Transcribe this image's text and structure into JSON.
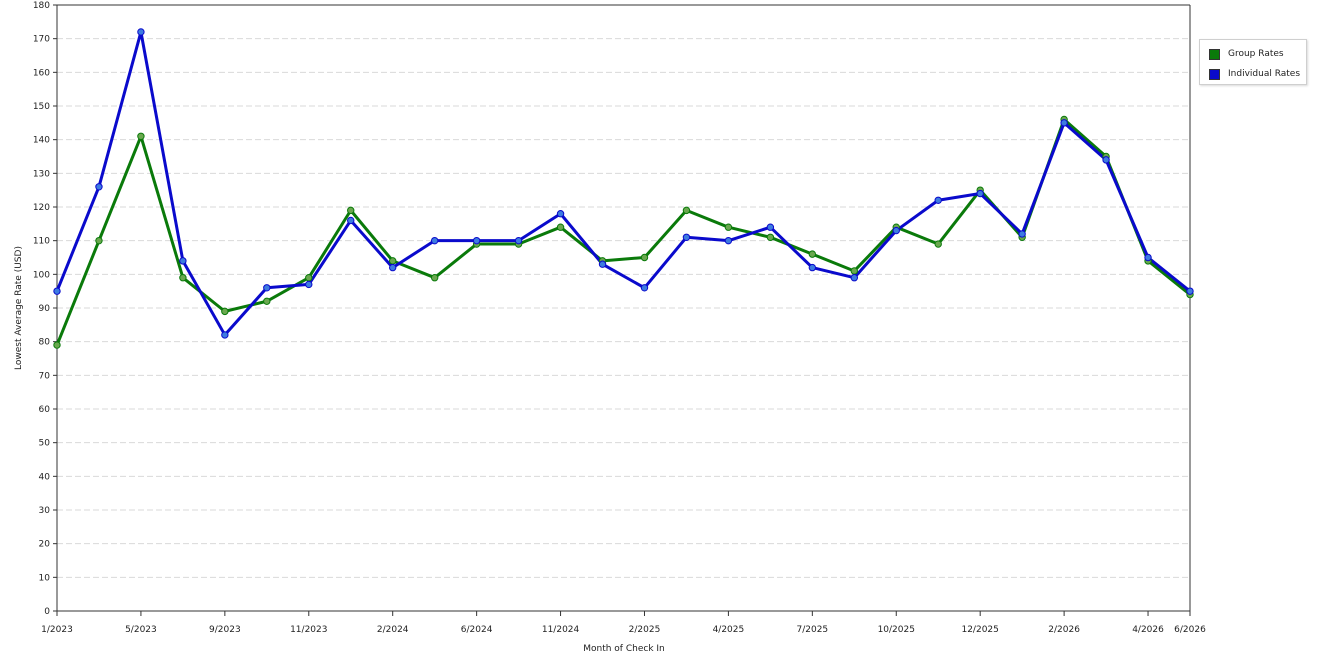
{
  "chart_data": {
    "type": "line",
    "xlabel": "Month of Check In",
    "ylabel": "Lowest Average Rate (USD)",
    "ylim": [
      0,
      180
    ],
    "yticks": [
      0,
      10,
      20,
      30,
      40,
      50,
      60,
      70,
      80,
      90,
      100,
      110,
      120,
      130,
      140,
      150,
      160,
      170,
      180
    ],
    "grid": true,
    "legend_position": "right",
    "x_tick_labels": [
      {
        "index": 0,
        "label": "1/2023"
      },
      {
        "index": 2,
        "label": "5/2023"
      },
      {
        "index": 4,
        "label": "9/2023"
      },
      {
        "index": 6,
        "label": "11/2023"
      },
      {
        "index": 8,
        "label": "2/2024"
      },
      {
        "index": 10,
        "label": "6/2024"
      },
      {
        "index": 12,
        "label": "11/2024"
      },
      {
        "index": 14,
        "label": "2/2025"
      },
      {
        "index": 16,
        "label": "4/2025"
      },
      {
        "index": 18,
        "label": "7/2025"
      },
      {
        "index": 20,
        "label": "10/2025"
      },
      {
        "index": 22,
        "label": "12/2025"
      },
      {
        "index": 24,
        "label": "2/2026"
      },
      {
        "index": 26,
        "label": "4/2026"
      },
      {
        "index": 27,
        "label": "6/2026"
      }
    ],
    "series": [
      {
        "name": "Group Rates",
        "color": "#0a7a0a",
        "values": [
          79,
          110,
          141,
          99,
          89,
          92,
          99,
          119,
          104,
          99,
          109,
          109,
          114,
          104,
          105,
          119,
          114,
          111,
          106,
          101,
          114,
          109,
          125,
          111,
          146,
          135,
          104,
          94
        ]
      },
      {
        "name": "Individual Rates",
        "color": "#0a0acc",
        "values": [
          95,
          126,
          172,
          104,
          82,
          96,
          97,
          116,
          102,
          110,
          110,
          110,
          118,
          103,
          96,
          111,
          110,
          114,
          102,
          99,
          113,
          122,
          124,
          112,
          145,
          134,
          105,
          95
        ]
      }
    ]
  }
}
